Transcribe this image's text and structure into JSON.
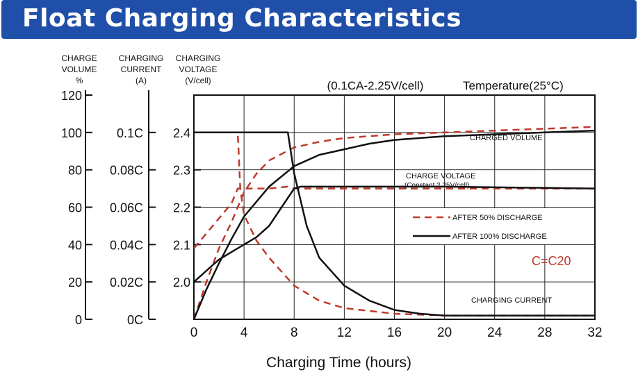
{
  "banner": {
    "title": "Float Charging Characteristics"
  },
  "chart_data": {
    "type": "line",
    "title": "Float Charging Characteristics",
    "subtitle": "(0.1CA-2.25V/cell)",
    "temperature_label": "Temperature(25°C)",
    "capacity_note": "C=C20",
    "xlabel": "Charging Time (hours)",
    "x_ticks": [
      "0",
      "4",
      "8",
      "12",
      "16",
      "20",
      "24",
      "28",
      "32"
    ],
    "xlim": [
      0,
      32
    ],
    "axes": [
      {
        "id": "volume",
        "title": [
          "CHARGE",
          "VOLUME",
          "%"
        ],
        "ticks": [
          "0",
          "20",
          "40",
          "60",
          "80",
          "100",
          "120"
        ],
        "tick_values": [
          0,
          20,
          40,
          60,
          80,
          100,
          120
        ],
        "range": [
          0,
          120
        ]
      },
      {
        "id": "current",
        "title": [
          "CHARGING",
          "CURRENT",
          "(A)"
        ],
        "ticks": [
          "0C",
          "0.02C",
          "0.04C",
          "0.06C",
          "0.08C",
          "0.1C"
        ],
        "tick_values": [
          0,
          0.02,
          0.04,
          0.06,
          0.08,
          0.1
        ],
        "range": [
          0,
          0.12
        ]
      },
      {
        "id": "voltage",
        "title": [
          "CHARGING",
          "VOLTAGE",
          "(V/cell)"
        ],
        "ticks": [
          "2.0",
          "2.1",
          "2.2",
          "2.3",
          "2.4"
        ],
        "tick_values": [
          2.0,
          2.1,
          2.2,
          2.3,
          2.4
        ],
        "range": [
          1.9,
          2.5
        ]
      }
    ],
    "legend": [
      {
        "label": "AFTER 50% DISCHARGE",
        "style": "dashed",
        "color": "#c0392b"
      },
      {
        "label": "AFTER 100% DISCHARGE",
        "style": "solid",
        "color": "#111111"
      }
    ],
    "curve_labels": {
      "volume": "CHARGED VOLUME",
      "voltage": [
        "CHARGE VOLTAGE",
        "(Constant 2.25V/cell)"
      ],
      "current": "CHARGING CURRENT"
    },
    "series": [
      {
        "legend": 0,
        "quantity": "volume",
        "axis": "volume",
        "x": [
          0,
          1,
          2,
          3,
          4,
          5,
          6,
          8,
          10,
          12,
          16,
          20,
          24,
          28,
          32
        ],
        "values": [
          0,
          20,
          38,
          52,
          68,
          78,
          85,
          92,
          95,
          97,
          99,
          100,
          101,
          102,
          103
        ]
      },
      {
        "legend": 0,
        "quantity": "voltage",
        "axis": "voltage",
        "x": [
          0,
          1,
          2,
          3,
          3.5,
          3.7,
          4.5,
          6,
          7.5,
          8,
          12,
          20,
          32
        ],
        "values": [
          2.09,
          2.13,
          2.17,
          2.21,
          2.25,
          2.25,
          2.25,
          2.25,
          2.255,
          2.25,
          2.25,
          2.25,
          2.25
        ]
      },
      {
        "legend": 0,
        "quantity": "current",
        "axis": "current",
        "x": [
          0,
          3.3,
          3.5,
          3.7,
          4,
          5,
          6,
          8,
          10,
          12,
          16,
          20,
          32
        ],
        "values": [
          0.1,
          0.1,
          0.1,
          0.07,
          0.056,
          0.042,
          0.033,
          0.018,
          0.01,
          0.006,
          0.003,
          0.002,
          0.002
        ]
      },
      {
        "legend": 1,
        "quantity": "volume",
        "axis": "volume",
        "x": [
          0,
          1,
          2,
          3,
          4,
          6,
          8,
          10,
          12,
          14,
          16,
          20,
          24,
          28,
          32
        ],
        "values": [
          0,
          16,
          30,
          43,
          55,
          71,
          82,
          88,
          91,
          94,
          96,
          98,
          99,
          100,
          101
        ]
      },
      {
        "legend": 1,
        "quantity": "voltage",
        "axis": "voltage",
        "x": [
          0,
          1,
          2,
          3,
          4,
          5,
          6,
          7,
          8,
          8.5,
          12,
          20,
          32
        ],
        "values": [
          2.0,
          2.03,
          2.06,
          2.08,
          2.1,
          2.12,
          2.15,
          2.2,
          2.25,
          2.255,
          2.255,
          2.255,
          2.25
        ]
      },
      {
        "legend": 1,
        "quantity": "current",
        "axis": "current",
        "x": [
          0,
          7.5,
          8,
          9,
          10,
          12,
          14,
          16,
          18,
          20,
          32
        ],
        "values": [
          0.1,
          0.1,
          0.078,
          0.05,
          0.033,
          0.018,
          0.01,
          0.005,
          0.003,
          0.002,
          0.002
        ]
      }
    ]
  }
}
